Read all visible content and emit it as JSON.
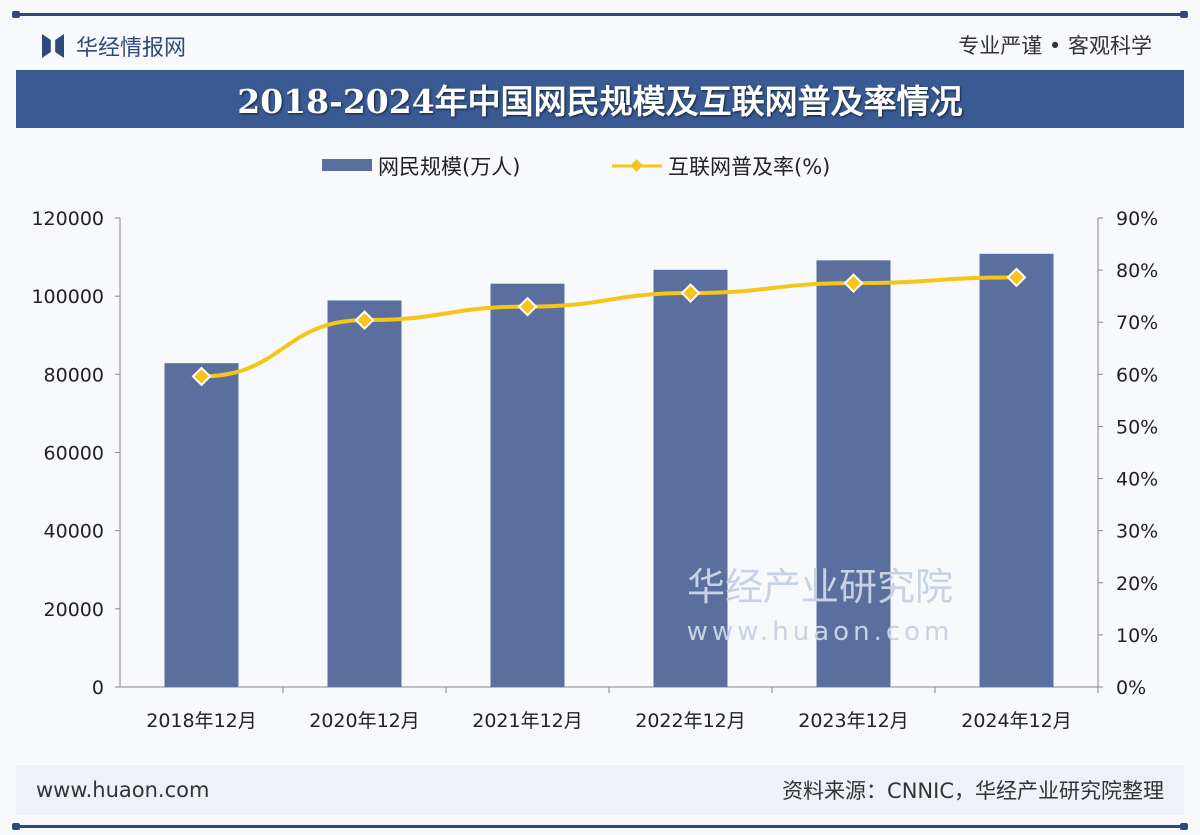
{
  "header": {
    "brand": "华经情报网",
    "motto": "专业严谨 • 客观科学"
  },
  "footer": {
    "website": "www.huaon.com",
    "source": "资料来源：CNNIC，华经产业研究院整理"
  },
  "watermark": {
    "name": "华经产业研究院",
    "url": "www.huaon.com"
  },
  "chart_data": {
    "type": "bar+line",
    "title": "2018-2024年中国网民规模及互联网普及率情况",
    "categories": [
      "2018年12月",
      "2020年12月",
      "2021年12月",
      "2022年12月",
      "2023年12月",
      "2024年12月"
    ],
    "series": [
      {
        "name": "网民规模(万人)",
        "type": "bar",
        "axis": "left",
        "color": "#5b6f9e",
        "values": [
          82851,
          98899,
          103195,
          106744,
          109167,
          110836
        ]
      },
      {
        "name": "互联网普及率(%)",
        "type": "line",
        "axis": "right",
        "color": "#f5c518",
        "values": [
          59.6,
          70.4,
          73.0,
          75.6,
          77.5,
          78.6
        ]
      }
    ],
    "y_left": {
      "min": 0,
      "max": 120000,
      "ticks": [
        "0",
        "20000",
        "40000",
        "60000",
        "80000",
        "100000",
        "120000"
      ]
    },
    "y_right": {
      "min": 0,
      "max": 90,
      "ticks": [
        "0%",
        "10%",
        "20%",
        "30%",
        "40%",
        "50%",
        "60%",
        "70%",
        "80%",
        "90%"
      ]
    },
    "legend": "top-center",
    "grid": false
  }
}
